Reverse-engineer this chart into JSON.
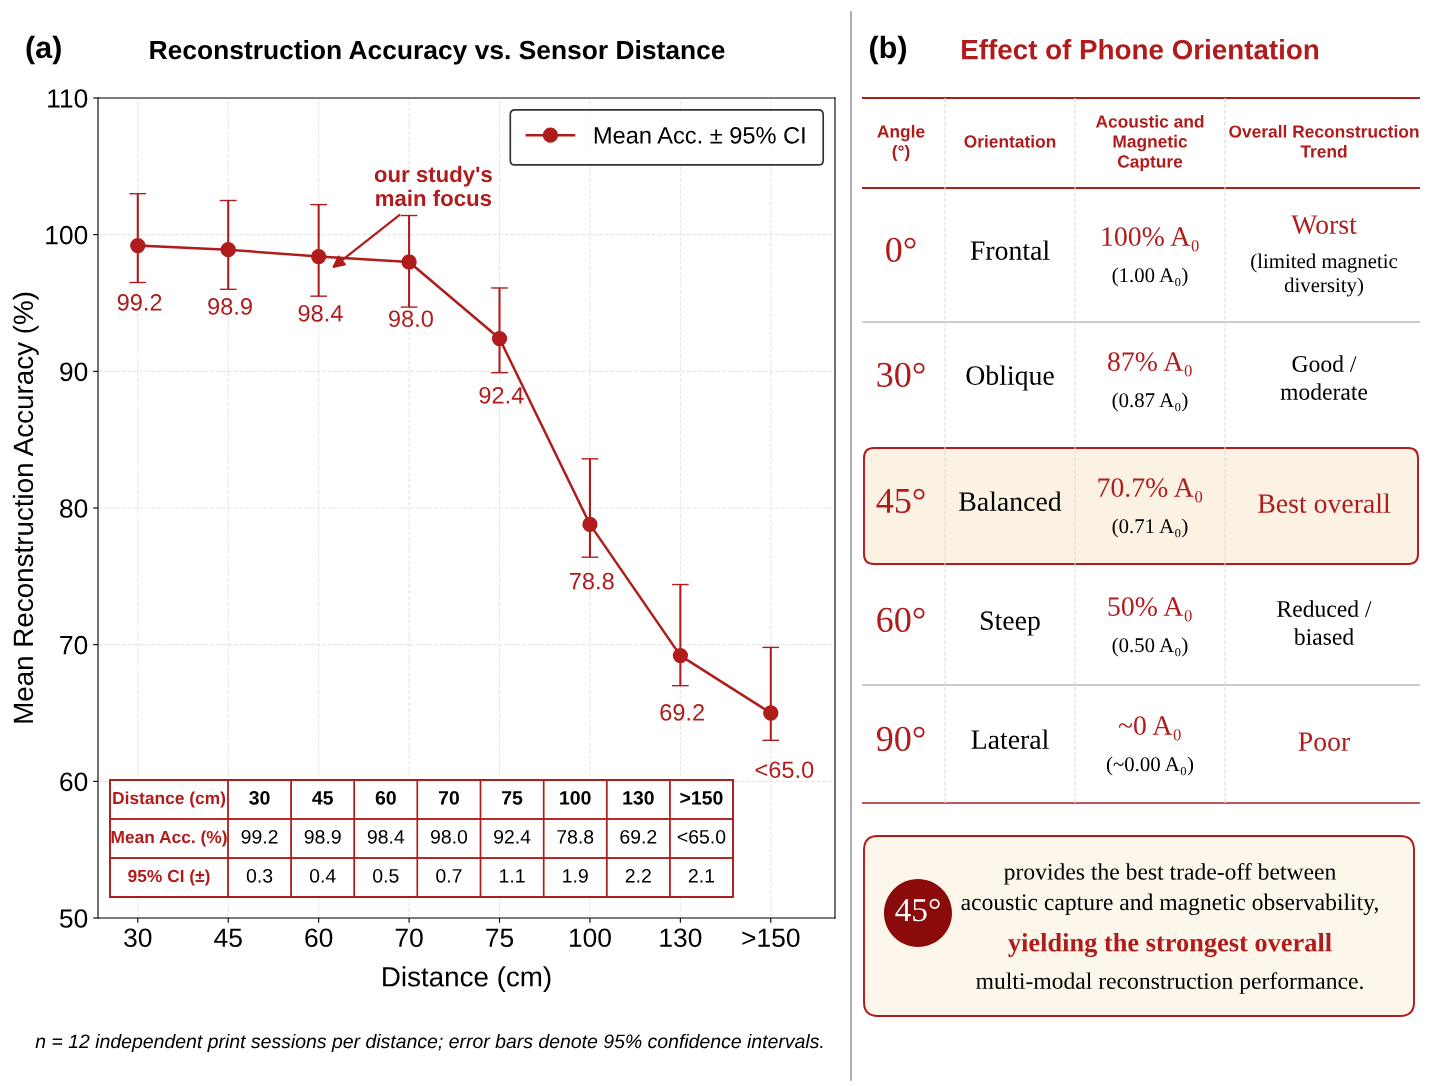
{
  "chart_data": [
    {
      "type": "line",
      "title": "Reconstruction Accuracy vs. Sensor Distance",
      "xlabel": "Distance (cm)",
      "ylabel": "Mean Reconstruction Accuracy (%)",
      "categories": [
        "30",
        "45",
        "60",
        "70",
        "75",
        "100",
        "130",
        ">150"
      ],
      "series": [
        {
          "name": "Mean Acc. ± 95% CI",
          "color": "#b01c1c",
          "values": [
            99.2,
            98.9,
            98.4,
            98.0,
            92.4,
            78.8,
            69.2,
            65.0
          ],
          "errors": [
            [
              96.5,
              103.0
            ],
            [
              96.0,
              102.5
            ],
            [
              95.5,
              102.2
            ],
            [
              94.7,
              101.4
            ],
            [
              89.9,
              96.1
            ],
            [
              76.4,
              83.6
            ],
            [
              67.0,
              74.4
            ],
            [
              63.0,
              69.8
            ]
          ],
          "value_labels": [
            "99.2",
            "98.9",
            "98.4",
            "98.0",
            "92.4",
            "78.8",
            "69.2",
            "<65.0"
          ]
        }
      ],
      "ylim": [
        50,
        110
      ],
      "yticks": [
        50,
        60,
        70,
        80,
        90,
        100,
        110
      ],
      "grid": true,
      "legend": "top right",
      "marker": "circle",
      "line_style": "solid",
      "annotations": [
        "(a)",
        "our study's\nmain focus",
        "Distance (cm)",
        "30",
        "45",
        "60",
        "70",
        "75",
        "100",
        "130",
        ">150",
        "Mean Acc. (%)",
        "99.2",
        "98.9",
        "98.4",
        "98.0",
        "92.4",
        "78.8",
        "69.2",
        "<65.0",
        "95% CI (±)",
        "0.3",
        "0.4",
        "0.5",
        "0.7",
        "1.1",
        "1.9",
        "2.2",
        "2.1",
        "n = 12 independent print sessions per distance; error bars denote 95% confidence intervals."
      ]
    },
    {
      "type": "other",
      "title": "Effect of Phone Orientation",
      "annotations": [
        "(b)",
        "Angle\n(°)",
        "Orientation",
        "Acoustic and\nMagnetic\nCapture",
        "Overall Reconstruction\nTrend",
        "0°",
        "Frontal",
        "100% A₀",
        "(1.00 A₀)",
        "Worst",
        "(limited magnetic\ndiversity)",
        "30°",
        "Oblique",
        "87% A₀",
        "(0.87 A₀)",
        "Good /\nmoderate",
        "45°",
        "Balanced",
        "70.7% A₀",
        "(0.71 A₀)",
        "Best overall",
        "60°",
        "Steep",
        "50% A₀",
        "(0.50 A₀)",
        "Reduced /\nbiased",
        "90°",
        "Lateral",
        "~0 A₀",
        "(~0.00 A₀)",
        "Poor",
        "45°",
        "provides the best trade-off between\nacoustic capture and magnetic observability,",
        "yielding the strongest overall",
        "multi-modal reconstruction performance."
      ]
    }
  ]
}
